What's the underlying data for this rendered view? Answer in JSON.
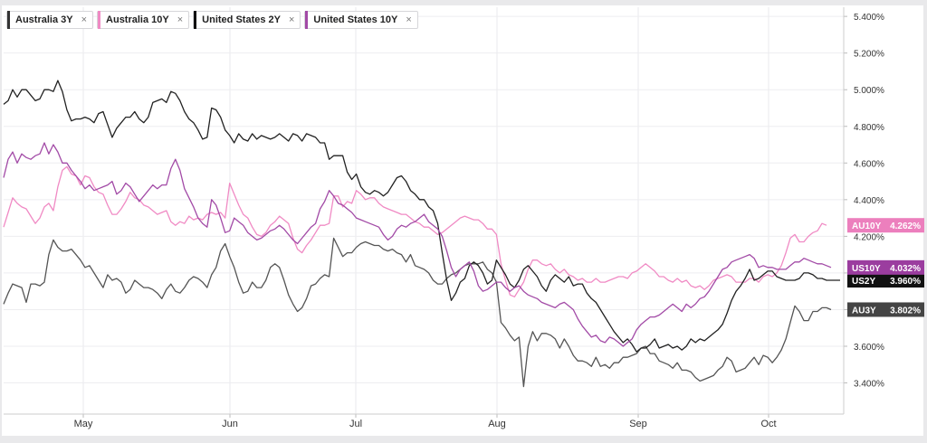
{
  "legend": [
    {
      "label": "Australia 3Y",
      "color": "#333333",
      "close": "×"
    },
    {
      "label": "Australia 10Y",
      "color": "#f08ac4",
      "close": "×"
    },
    {
      "label": "United States 2Y",
      "color": "#111111",
      "close": "×"
    },
    {
      "label": "United States 10Y",
      "color": "#a24aa6",
      "close": "×"
    }
  ],
  "chart_data": {
    "type": "line",
    "grid": true,
    "legend_position": "top-left",
    "x_ticks": [
      "May",
      "Jun",
      "Jul",
      "Aug",
      "Sep",
      "Oct"
    ],
    "y_ticks": [
      "3.400%",
      "3.600%",
      "3.800%",
      "4.000%",
      "4.200%",
      "4.400%",
      "4.600%",
      "4.800%",
      "5.000%",
      "5.200%",
      "5.400%"
    ],
    "ylim": [
      3.23,
      5.45
    ],
    "series": [
      {
        "name": "Australia 3Y",
        "tag": "AU3Y",
        "last_label": "3.802%",
        "color": "#555555",
        "values": [
          3.83,
          3.89,
          3.94,
          3.93,
          3.92,
          3.84,
          3.94,
          3.94,
          3.93,
          3.95,
          4.1,
          4.18,
          4.14,
          4.12,
          4.12,
          4.13,
          4.1,
          4.07,
          4.03,
          4.04,
          4.0,
          3.96,
          3.92,
          3.99,
          3.96,
          3.97,
          3.95,
          3.89,
          3.91,
          3.96,
          3.94,
          3.92,
          3.92,
          3.91,
          3.89,
          3.86,
          3.91,
          3.94,
          3.9,
          3.89,
          3.92,
          3.96,
          3.98,
          3.97,
          3.95,
          3.92,
          3.99,
          4.03,
          4.12,
          4.16,
          4.09,
          4.03,
          3.95,
          3.89,
          3.9,
          3.95,
          3.92,
          3.92,
          3.96,
          4.03,
          4.05,
          4.03,
          3.96,
          3.88,
          3.83,
          3.79,
          3.81,
          3.86,
          3.93,
          3.94,
          3.97,
          3.99,
          3.98,
          4.19,
          4.14,
          4.09,
          4.11,
          4.11,
          4.14,
          4.16,
          4.17,
          4.16,
          4.15,
          4.15,
          4.13,
          4.12,
          4.13,
          4.11,
          4.1,
          4.06,
          4.1,
          4.04,
          4.03,
          4.02,
          4.0,
          3.96,
          3.94,
          3.94,
          3.97,
          3.99,
          4.0,
          4.02,
          4.04,
          4.05,
          4.05,
          4.05,
          4.06,
          4.02,
          4.0,
          3.95,
          3.73,
          3.7,
          3.66,
          3.63,
          3.65,
          3.38,
          3.6,
          3.68,
          3.63,
          3.67,
          3.67,
          3.66,
          3.64,
          3.59,
          3.64,
          3.6,
          3.55,
          3.52,
          3.52,
          3.51,
          3.49,
          3.54,
          3.49,
          3.5,
          3.48,
          3.51,
          3.51,
          3.54,
          3.54,
          3.55,
          3.56,
          3.59,
          3.6,
          3.56,
          3.56,
          3.52,
          3.51,
          3.5,
          3.48,
          3.51,
          3.47,
          3.47,
          3.46,
          3.43,
          3.41,
          3.42,
          3.43,
          3.44,
          3.47,
          3.49,
          3.54,
          3.52,
          3.46,
          3.47,
          3.48,
          3.51,
          3.54,
          3.5,
          3.55,
          3.54,
          3.51,
          3.54,
          3.58,
          3.64,
          3.73,
          3.82,
          3.79,
          3.74,
          3.74,
          3.79,
          3.79,
          3.81,
          3.81,
          3.8
        ]
      },
      {
        "name": "Australia 10Y",
        "tag": "AU10Y",
        "last_label": "4.262%",
        "color": "#f08ac4",
        "values": [
          4.25,
          4.33,
          4.41,
          4.38,
          4.36,
          4.35,
          4.31,
          4.27,
          4.3,
          4.36,
          4.38,
          4.34,
          4.47,
          4.56,
          4.58,
          4.54,
          4.53,
          4.48,
          4.53,
          4.52,
          4.47,
          4.44,
          4.43,
          4.37,
          4.32,
          4.32,
          4.35,
          4.39,
          4.44,
          4.41,
          4.4,
          4.37,
          4.36,
          4.34,
          4.32,
          4.33,
          4.34,
          4.28,
          4.26,
          4.28,
          4.27,
          4.31,
          4.29,
          4.3,
          4.29,
          4.32,
          4.33,
          4.32,
          4.33,
          4.3,
          4.49,
          4.43,
          4.37,
          4.32,
          4.3,
          4.25,
          4.21,
          4.2,
          4.22,
          4.26,
          4.28,
          4.31,
          4.29,
          4.27,
          4.19,
          4.13,
          4.11,
          4.15,
          4.18,
          4.22,
          4.26,
          4.26,
          4.27,
          4.42,
          4.42,
          4.36,
          4.39,
          4.38,
          4.45,
          4.43,
          4.4,
          4.41,
          4.41,
          4.38,
          4.36,
          4.35,
          4.34,
          4.33,
          4.32,
          4.32,
          4.3,
          4.28,
          4.27,
          4.25,
          4.25,
          4.23,
          4.21,
          4.22,
          4.24,
          4.26,
          4.28,
          4.3,
          4.31,
          4.3,
          4.29,
          4.29,
          4.27,
          4.24,
          4.24,
          4.21,
          4.05,
          3.96,
          3.88,
          3.87,
          3.91,
          3.95,
          4.02,
          4.07,
          4.07,
          4.05,
          4.04,
          4.05,
          4.02,
          4.0,
          4.02,
          3.99,
          3.98,
          3.96,
          3.97,
          3.95,
          3.95,
          3.97,
          3.95,
          3.95,
          3.96,
          3.97,
          3.98,
          3.98,
          3.97,
          4.0,
          4.01,
          4.03,
          4.05,
          4.03,
          4.01,
          3.98,
          3.98,
          3.96,
          3.95,
          3.97,
          3.95,
          3.96,
          3.93,
          3.92,
          3.93,
          3.91,
          3.93,
          3.96,
          3.97,
          3.98,
          3.99,
          3.98,
          3.95,
          3.95,
          3.95,
          3.97,
          3.97,
          3.95,
          3.98,
          3.99,
          3.98,
          4.0,
          4.04,
          4.11,
          4.19,
          4.21,
          4.17,
          4.17,
          4.2,
          4.22,
          4.23,
          4.27,
          4.26
        ]
      },
      {
        "name": "United States 2Y",
        "tag": "US2Y",
        "last_label": "3.960%",
        "color": "#222222",
        "values": [
          4.92,
          4.94,
          5.0,
          4.96,
          5.0,
          5.0,
          4.97,
          4.94,
          4.95,
          5.0,
          5.0,
          4.99,
          5.05,
          4.99,
          4.89,
          4.83,
          4.84,
          4.84,
          4.85,
          4.84,
          4.82,
          4.87,
          4.88,
          4.81,
          4.74,
          4.79,
          4.82,
          4.85,
          4.85,
          4.88,
          4.84,
          4.82,
          4.85,
          4.93,
          4.94,
          4.95,
          4.93,
          4.99,
          4.98,
          4.94,
          4.88,
          4.84,
          4.82,
          4.78,
          4.73,
          4.74,
          4.9,
          4.89,
          4.85,
          4.78,
          4.75,
          4.71,
          4.76,
          4.73,
          4.72,
          4.76,
          4.73,
          4.75,
          4.74,
          4.73,
          4.74,
          4.76,
          4.74,
          4.72,
          4.76,
          4.75,
          4.72,
          4.76,
          4.75,
          4.74,
          4.71,
          4.71,
          4.62,
          4.64,
          4.64,
          4.64,
          4.55,
          4.51,
          4.54,
          4.47,
          4.44,
          4.43,
          4.45,
          4.44,
          4.42,
          4.44,
          4.48,
          4.52,
          4.53,
          4.5,
          4.45,
          4.43,
          4.4,
          4.4,
          4.36,
          4.34,
          4.27,
          4.11,
          3.96,
          3.85,
          3.89,
          3.95,
          3.97,
          4.04,
          4.06,
          4.04,
          4.0,
          3.94,
          3.96,
          4.07,
          4.03,
          3.99,
          3.94,
          3.92,
          3.96,
          4.02,
          4.04,
          4.01,
          3.98,
          3.93,
          3.9,
          3.96,
          3.99,
          3.97,
          3.95,
          3.98,
          3.93,
          3.94,
          3.94,
          3.89,
          3.86,
          3.84,
          3.8,
          3.76,
          3.72,
          3.68,
          3.65,
          3.62,
          3.64,
          3.61,
          3.57,
          3.59,
          3.59,
          3.61,
          3.64,
          3.59,
          3.6,
          3.61,
          3.59,
          3.6,
          3.58,
          3.6,
          3.64,
          3.62,
          3.64,
          3.63,
          3.65,
          3.67,
          3.69,
          3.72,
          3.78,
          3.85,
          3.9,
          3.93,
          3.97,
          4.02,
          3.96,
          3.97,
          3.99,
          4.01,
          4.01,
          3.98,
          3.97,
          3.96,
          3.96,
          3.96,
          3.97,
          4.0,
          4.0,
          3.99,
          3.97,
          3.97,
          3.96,
          3.96,
          3.96,
          3.96
        ]
      },
      {
        "name": "United States 10Y",
        "tag": "US10Y",
        "last_label": "4.032%",
        "color": "#a24aa6",
        "values": [
          4.52,
          4.62,
          4.66,
          4.6,
          4.65,
          4.63,
          4.62,
          4.64,
          4.65,
          4.71,
          4.65,
          4.7,
          4.66,
          4.6,
          4.6,
          4.56,
          4.53,
          4.5,
          4.46,
          4.48,
          4.45,
          4.46,
          4.47,
          4.48,
          4.5,
          4.43,
          4.45,
          4.49,
          4.47,
          4.43,
          4.39,
          4.42,
          4.45,
          4.48,
          4.46,
          4.48,
          4.48,
          4.57,
          4.62,
          4.56,
          4.46,
          4.41,
          4.36,
          4.3,
          4.27,
          4.25,
          4.4,
          4.37,
          4.3,
          4.22,
          4.23,
          4.3,
          4.28,
          4.26,
          4.22,
          4.2,
          4.18,
          4.19,
          4.21,
          4.23,
          4.24,
          4.26,
          4.24,
          4.21,
          4.18,
          4.16,
          4.19,
          4.22,
          4.25,
          4.27,
          4.35,
          4.39,
          4.45,
          4.42,
          4.38,
          4.37,
          4.35,
          4.33,
          4.3,
          4.29,
          4.28,
          4.27,
          4.26,
          4.25,
          4.21,
          4.18,
          4.2,
          4.24,
          4.26,
          4.25,
          4.27,
          4.28,
          4.3,
          4.32,
          4.28,
          4.26,
          4.24,
          4.2,
          4.12,
          4.03,
          3.98,
          4.02,
          4.04,
          4.06,
          4.01,
          3.93,
          3.9,
          3.91,
          3.93,
          3.95,
          3.95,
          3.92,
          3.9,
          3.92,
          3.93,
          3.9,
          3.88,
          3.87,
          3.86,
          3.84,
          3.83,
          3.82,
          3.81,
          3.83,
          3.84,
          3.82,
          3.8,
          3.75,
          3.71,
          3.68,
          3.65,
          3.66,
          3.63,
          3.62,
          3.65,
          3.64,
          3.62,
          3.6,
          3.62,
          3.64,
          3.69,
          3.72,
          3.74,
          3.76,
          3.76,
          3.77,
          3.79,
          3.81,
          3.83,
          3.81,
          3.79,
          3.83,
          3.81,
          3.83,
          3.86,
          3.87,
          3.9,
          3.94,
          3.98,
          4.02,
          4.03,
          4.06,
          4.07,
          4.08,
          4.09,
          4.1,
          4.08,
          4.03,
          4.04,
          4.03,
          4.03,
          4.02,
          4.02,
          4.02,
          4.04,
          4.06,
          4.06,
          4.08,
          4.07,
          4.06,
          4.05,
          4.05,
          4.04,
          4.03
        ]
      }
    ]
  }
}
